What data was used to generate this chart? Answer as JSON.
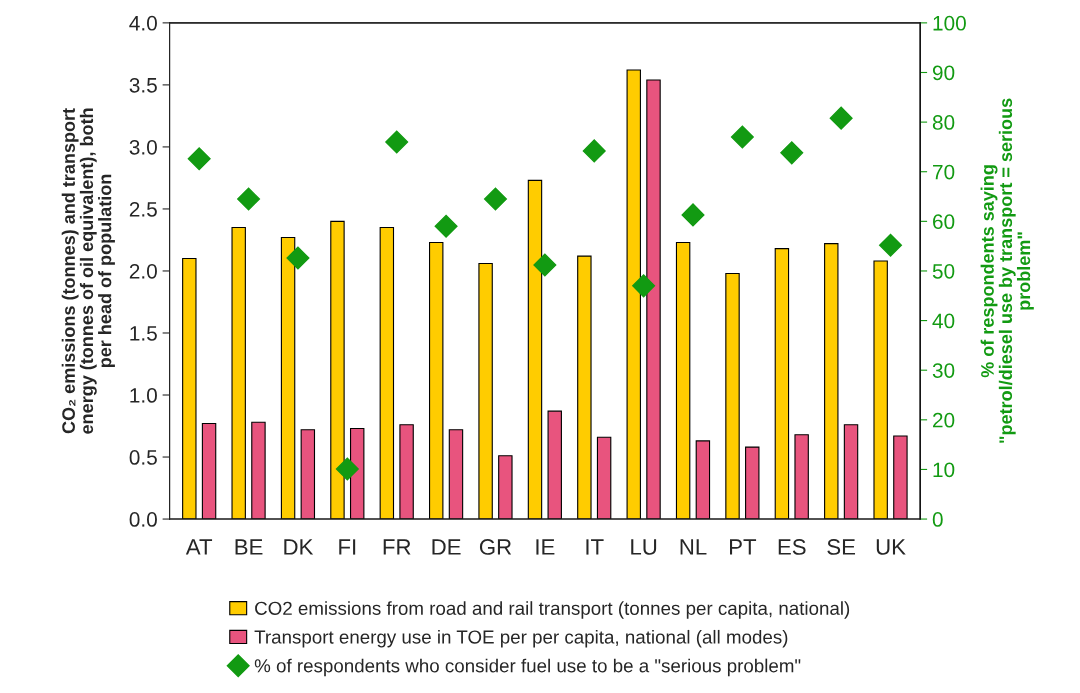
{
  "chart_data": {
    "type": "bar",
    "categories": [
      "AT",
      "BE",
      "DK",
      "FI",
      "FR",
      "DE",
      "GR",
      "IE",
      "IT",
      "LU",
      "NL",
      "PT",
      "ES",
      "SE",
      "UK"
    ],
    "series": [
      {
        "name": "CO2 emissions from road and rail transport (tonnes per capita, national)",
        "color": "#ffcc00",
        "values": [
          2.1,
          2.35,
          2.27,
          2.4,
          2.35,
          2.23,
          2.06,
          2.73,
          2.12,
          3.62,
          2.23,
          1.98,
          2.18,
          2.22,
          2.08
        ]
      },
      {
        "name": "Transport energy use in TOE per per capita, national (all modes)",
        "color": "#e8547e",
        "values": [
          0.77,
          0.78,
          0.72,
          0.73,
          0.76,
          0.72,
          0.51,
          0.87,
          0.66,
          3.54,
          0.63,
          0.58,
          0.68,
          0.76,
          0.67
        ]
      },
      {
        "name": "% of respondents who consider fuel use to be a \"serious problem\"",
        "type": "scatter",
        "axis": "y2",
        "color": "#129a12",
        "marker": "diamond",
        "values": [
          72.6,
          64.5,
          52.6,
          10.1,
          76,
          59,
          64.5,
          51.2,
          74.2,
          47,
          61.3,
          77,
          73.8,
          80.8,
          55.2
        ]
      }
    ],
    "ylabel": "CO₂ emissions (tonnes) and transport\nenergy (tonnes of oil equivalent), both\nper head of population",
    "y2label": "% of respondents saying\n\"petrol/diesel use by transport = serious\nproblem\"",
    "ylim": [
      0,
      4
    ],
    "yticks": [
      {
        "value": 0,
        "label": "0.0"
      },
      {
        "value": 0.5,
        "label": "0.5"
      },
      {
        "value": 1,
        "label": "1.0"
      },
      {
        "value": 1.5,
        "label": "1.5"
      },
      {
        "value": 2,
        "label": "2.0"
      },
      {
        "value": 2.5,
        "label": "2.5"
      },
      {
        "value": 3,
        "label": "3.0"
      },
      {
        "value": 3.5,
        "label": "3.5"
      },
      {
        "value": 4,
        "label": "4.0"
      }
    ],
    "y2lim": [
      0,
      100
    ],
    "y2ticks": [
      0,
      10,
      20,
      30,
      40,
      50,
      60,
      70,
      80,
      90,
      100
    ],
    "grid": false,
    "legend": "bottom"
  }
}
